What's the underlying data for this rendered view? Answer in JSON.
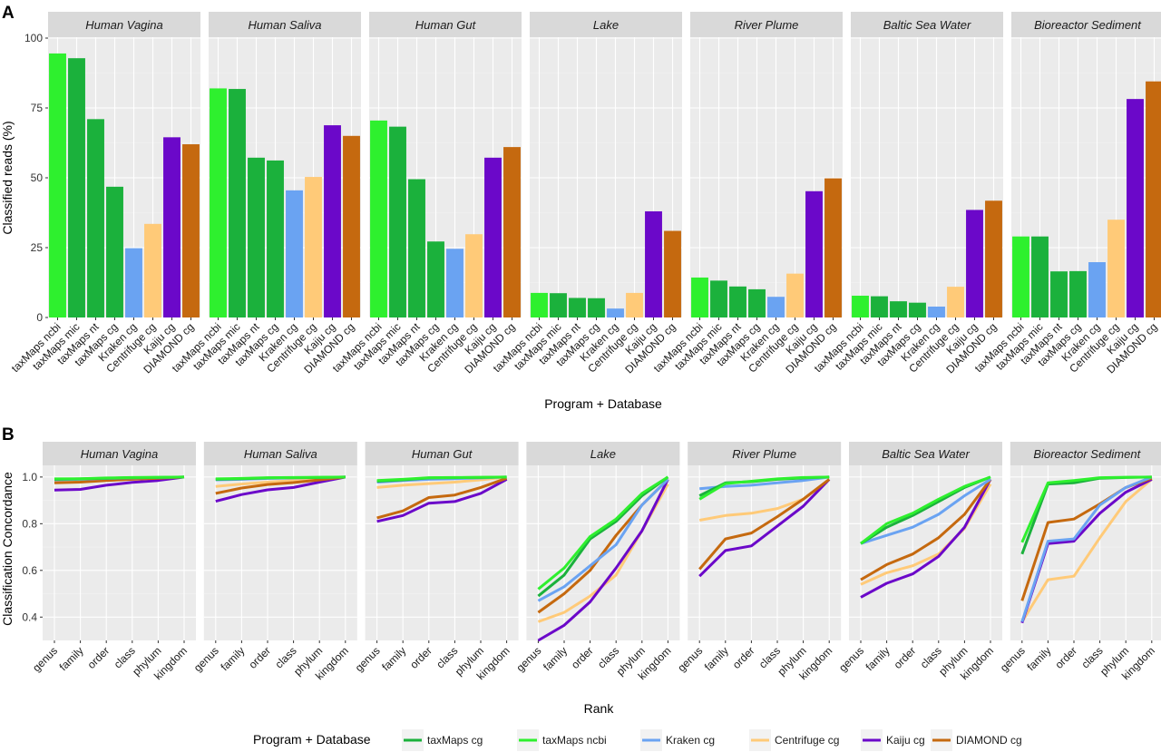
{
  "figure": {
    "panel_a_tag": "A",
    "panel_b_tag": "B"
  },
  "legend": {
    "title": "Program + Database",
    "items": [
      {
        "label": "taxMaps cg",
        "color": "#1bb13c"
      },
      {
        "label": "taxMaps ncbi",
        "color": "#2ef02e"
      },
      {
        "label": "Kraken cg",
        "color": "#6aa3f2"
      },
      {
        "label": "Centrifuge cg",
        "color": "#ffca78"
      },
      {
        "label": "Kaiju cg",
        "color": "#6b08c9"
      },
      {
        "label": "DIAMOND cg",
        "color": "#c5690f"
      }
    ]
  },
  "chart_data": [
    {
      "type": "bar",
      "panel": "A",
      "xlabel": "Program + Database",
      "ylabel": "Classified reads (%)",
      "ylim": [
        0,
        100
      ],
      "yticks": [
        0,
        25,
        50,
        75,
        100
      ],
      "grid": true,
      "categories": [
        "taxMaps ncbi",
        "taxMaps mic",
        "taxMaps nt",
        "taxMaps cg",
        "Kraken cg",
        "Centrifuge cg",
        "Kaiju cg",
        "DIAMOND cg"
      ],
      "category_colors": [
        "#2ef02e",
        "#1bb13c",
        "#1bb13c",
        "#1bb13c",
        "#6aa3f2",
        "#ffca78",
        "#6b08c9",
        "#c5690f"
      ],
      "facets": [
        {
          "name": "Human Vagina",
          "values": [
            94.5,
            92.8,
            71.0,
            46.8,
            24.8,
            33.5,
            64.5,
            62.0
          ]
        },
        {
          "name": "Human Saliva",
          "values": [
            82.0,
            81.8,
            57.2,
            56.2,
            45.5,
            50.3,
            68.8,
            65.0
          ]
        },
        {
          "name": "Human Gut",
          "values": [
            70.5,
            68.3,
            49.5,
            27.2,
            24.6,
            29.8,
            57.2,
            61.0
          ]
        },
        {
          "name": "Lake",
          "values": [
            8.8,
            8.7,
            7.0,
            6.9,
            3.2,
            8.8,
            38.0,
            31.0
          ]
        },
        {
          "name": "River Plume",
          "values": [
            14.3,
            13.2,
            11.1,
            10.1,
            7.4,
            15.7,
            45.2,
            49.8
          ]
        },
        {
          "name": "Baltic Sea Water",
          "values": [
            7.8,
            7.6,
            5.8,
            5.3,
            3.9,
            11.0,
            38.5,
            41.8
          ]
        },
        {
          "name": "Bioreactor Sediment",
          "values": [
            29.0,
            29.0,
            16.5,
            16.6,
            19.8,
            35.0,
            78.2,
            84.5
          ]
        }
      ]
    },
    {
      "type": "line",
      "panel": "B",
      "xlabel": "Rank",
      "ylabel": "Classification Concordance",
      "x": [
        "genus",
        "family",
        "order",
        "class",
        "phylum",
        "kingdom"
      ],
      "ylim": [
        0.3,
        1.05
      ],
      "yticks": [
        0.4,
        0.6,
        0.8,
        1.0
      ],
      "grid": true,
      "legend_position": "bottom",
      "facets": [
        {
          "name": "Human Vagina",
          "series": [
            {
              "name": "Centrifuge cg",
              "values": [
                0.985,
                0.985,
                0.99,
                0.993,
                0.996,
                1.0
              ]
            },
            {
              "name": "Kaiju cg",
              "values": [
                0.944,
                0.947,
                0.965,
                0.977,
                0.985,
                1.0
              ]
            },
            {
              "name": "DIAMOND cg",
              "values": [
                0.975,
                0.978,
                0.985,
                0.99,
                0.995,
                1.0
              ]
            },
            {
              "name": "Kraken cg",
              "values": [
                0.988,
                0.99,
                0.994,
                0.996,
                0.998,
                1.0
              ]
            },
            {
              "name": "taxMaps cg",
              "values": [
                0.99,
                0.992,
                0.995,
                0.997,
                0.998,
                1.0
              ]
            },
            {
              "name": "taxMaps ncbi",
              "values": [
                0.992,
                0.993,
                0.996,
                0.998,
                0.999,
                1.0
              ]
            }
          ]
        },
        {
          "name": "Human Saliva",
          "series": [
            {
              "name": "Centrifuge cg",
              "values": [
                0.96,
                0.97,
                0.978,
                0.985,
                0.992,
                1.0
              ]
            },
            {
              "name": "Kaiju cg",
              "values": [
                0.896,
                0.925,
                0.945,
                0.955,
                0.978,
                1.0
              ]
            },
            {
              "name": "DIAMOND cg",
              "values": [
                0.93,
                0.953,
                0.968,
                0.976,
                0.988,
                1.0
              ]
            },
            {
              "name": "Kraken cg",
              "values": [
                0.988,
                0.99,
                0.994,
                0.996,
                0.998,
                1.0
              ]
            },
            {
              "name": "taxMaps cg",
              "values": [
                0.99,
                0.993,
                0.996,
                0.997,
                0.998,
                1.0
              ]
            },
            {
              "name": "taxMaps ncbi",
              "values": [
                0.992,
                0.994,
                0.997,
                0.998,
                0.999,
                1.0
              ]
            }
          ]
        },
        {
          "name": "Human Gut",
          "series": [
            {
              "name": "Centrifuge cg",
              "values": [
                0.955,
                0.965,
                0.972,
                0.978,
                0.988,
                1.0
              ]
            },
            {
              "name": "Kaiju cg",
              "values": [
                0.81,
                0.835,
                0.888,
                0.895,
                0.93,
                0.99
              ]
            },
            {
              "name": "DIAMOND cg",
              "values": [
                0.825,
                0.855,
                0.912,
                0.923,
                0.955,
                0.995
              ]
            },
            {
              "name": "Kraken cg",
              "values": [
                0.978,
                0.985,
                0.99,
                0.993,
                0.996,
                1.0
              ]
            },
            {
              "name": "taxMaps cg",
              "values": [
                0.982,
                0.988,
                0.996,
                0.997,
                0.998,
                1.0
              ]
            },
            {
              "name": "taxMaps ncbi",
              "values": [
                0.985,
                0.99,
                0.997,
                0.998,
                0.999,
                1.0
              ]
            }
          ]
        },
        {
          "name": "Lake",
          "series": [
            {
              "name": "Centrifuge cg",
              "values": [
                0.38,
                0.42,
                0.49,
                0.58,
                0.77,
                0.97
              ]
            },
            {
              "name": "Kaiju cg",
              "values": [
                0.3,
                0.365,
                0.465,
                0.61,
                0.77,
                0.99
              ]
            },
            {
              "name": "DIAMOND cg",
              "values": [
                0.42,
                0.5,
                0.6,
                0.75,
                0.88,
                0.99
              ]
            },
            {
              "name": "Kraken cg",
              "values": [
                0.47,
                0.53,
                0.62,
                0.71,
                0.88,
                0.99
              ]
            },
            {
              "name": "taxMaps cg",
              "values": [
                0.49,
                0.58,
                0.735,
                0.81,
                0.92,
                1.0
              ]
            },
            {
              "name": "taxMaps ncbi",
              "values": [
                0.52,
                0.61,
                0.745,
                0.82,
                0.93,
                1.0
              ]
            }
          ]
        },
        {
          "name": "River Plume",
          "series": [
            {
              "name": "Centrifuge cg",
              "values": [
                0.815,
                0.835,
                0.845,
                0.865,
                0.905,
                0.99
              ]
            },
            {
              "name": "Kaiju cg",
              "values": [
                0.575,
                0.685,
                0.705,
                0.79,
                0.875,
                0.99
              ]
            },
            {
              "name": "DIAMOND cg",
              "values": [
                0.605,
                0.735,
                0.76,
                0.83,
                0.905,
                0.99
              ]
            },
            {
              "name": "Kraken cg",
              "values": [
                0.95,
                0.96,
                0.965,
                0.975,
                0.985,
                1.0
              ]
            },
            {
              "name": "taxMaps cg",
              "values": [
                0.92,
                0.975,
                0.98,
                0.99,
                0.996,
                1.0
              ]
            },
            {
              "name": "taxMaps ncbi",
              "values": [
                0.905,
                0.972,
                0.982,
                0.992,
                0.998,
                1.0
              ]
            }
          ]
        },
        {
          "name": "Baltic Sea Water",
          "series": [
            {
              "name": "Centrifuge cg",
              "values": [
                0.54,
                0.59,
                0.62,
                0.67,
                0.78,
                0.97
              ]
            },
            {
              "name": "Kaiju cg",
              "values": [
                0.485,
                0.545,
                0.585,
                0.66,
                0.785,
                0.99
              ]
            },
            {
              "name": "DIAMOND cg",
              "values": [
                0.56,
                0.625,
                0.67,
                0.74,
                0.84,
                0.99
              ]
            },
            {
              "name": "Kraken cg",
              "values": [
                0.715,
                0.75,
                0.785,
                0.84,
                0.92,
                0.99
              ]
            },
            {
              "name": "taxMaps cg",
              "values": [
                0.715,
                0.785,
                0.835,
                0.895,
                0.955,
                1.0
              ]
            },
            {
              "name": "taxMaps ncbi",
              "values": [
                0.715,
                0.8,
                0.845,
                0.905,
                0.96,
                1.0
              ]
            }
          ]
        },
        {
          "name": "Bioreactor Sediment",
          "series": [
            {
              "name": "Centrifuge cg",
              "values": [
                0.38,
                0.56,
                0.575,
                0.74,
                0.895,
                0.99
              ]
            },
            {
              "name": "Kaiju cg",
              "values": [
                0.375,
                0.715,
                0.725,
                0.845,
                0.935,
                0.99
              ]
            },
            {
              "name": "DIAMOND cg",
              "values": [
                0.47,
                0.805,
                0.82,
                0.885,
                0.955,
                0.995
              ]
            },
            {
              "name": "Kraken cg",
              "values": [
                0.38,
                0.725,
                0.735,
                0.88,
                0.955,
                1.0
              ]
            },
            {
              "name": "taxMaps cg",
              "values": [
                0.67,
                0.97,
                0.975,
                0.995,
                0.998,
                1.0
              ]
            },
            {
              "name": "taxMaps ncbi",
              "values": [
                0.72,
                0.975,
                0.985,
                0.997,
                0.999,
                1.0
              ]
            }
          ]
        }
      ]
    }
  ]
}
